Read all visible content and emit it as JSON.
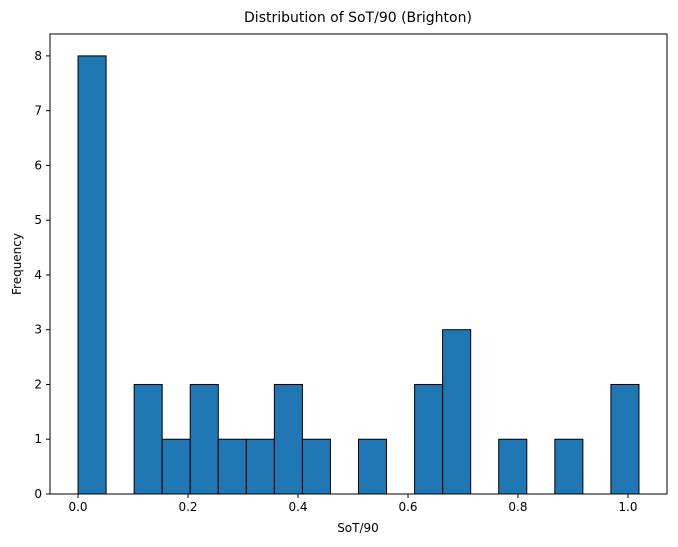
{
  "chart_data": {
    "type": "bar",
    "title": "Distribution of SoT/90 (Brighton)",
    "xlabel": "SoT/90",
    "ylabel": "Frequency",
    "bin_edges": [
      0.0,
      0.051,
      0.102,
      0.153,
      0.204,
      0.255,
      0.306,
      0.357,
      0.408,
      0.459,
      0.51,
      0.561,
      0.612,
      0.663,
      0.714,
      0.765,
      0.816,
      0.867,
      0.918,
      0.969,
      1.02
    ],
    "values": [
      8,
      0,
      2,
      1,
      2,
      1,
      1,
      2,
      1,
      0,
      1,
      0,
      2,
      3,
      0,
      1,
      0,
      1,
      0,
      2
    ],
    "xlim": [
      -0.051,
      1.071
    ],
    "ylim": [
      0,
      8.4
    ],
    "xticks": [
      0.0,
      0.2,
      0.4,
      0.6,
      0.8,
      1.0
    ],
    "xtick_labels": [
      "0.0",
      "0.2",
      "0.4",
      "0.6",
      "0.8",
      "1.0"
    ],
    "yticks": [
      0,
      1,
      2,
      3,
      4,
      5,
      6,
      7,
      8
    ],
    "ytick_labels": [
      "0",
      "1",
      "2",
      "3",
      "4",
      "5",
      "6",
      "7",
      "8"
    ],
    "bar_color": "#1f77b4",
    "edge_color": "#000000",
    "grid": false,
    "legend": "none"
  }
}
